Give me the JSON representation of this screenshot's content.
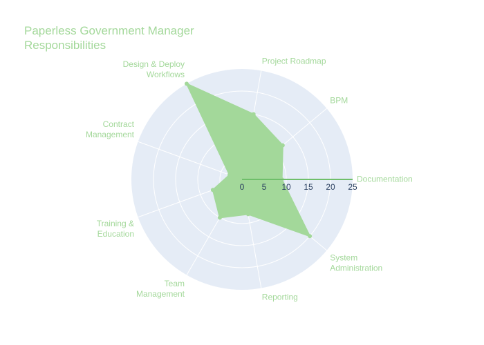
{
  "chart_data": {
    "type": "radar",
    "title": "Paperless Government Manager Responsibilities",
    "title_lines": [
      "Paperless Government Manager",
      "Responsibilities"
    ],
    "categories": [
      "Documentation",
      "BPM",
      "Project Roadmap",
      "Design & Deploy Workflows",
      "Contract Management",
      "Training & Education",
      "Team Management",
      "Reporting",
      "System Administration"
    ],
    "category_lines": [
      [
        "Documentation"
      ],
      [
        "BPM"
      ],
      [
        "Project Roadmap"
      ],
      [
        "Design & Deploy",
        "Workflows"
      ],
      [
        "Contract",
        "Management"
      ],
      [
        "Training &",
        "Education"
      ],
      [
        "Team",
        "Management"
      ],
      [
        "Reporting"
      ],
      [
        "System",
        "Administration"
      ]
    ],
    "values": [
      9,
      12,
      15,
      25,
      3,
      7,
      10,
      8,
      20
    ],
    "radial_range": [
      0,
      25
    ],
    "radial_ticks": [
      "0",
      "5",
      "10",
      "15",
      "20",
      "25"
    ],
    "angle_start_deg": 0,
    "direction": "counterclockwise",
    "fill_color": "#a3d89a",
    "line_color": "#6fbf6a",
    "polar_bg_color": "#e5ecf6",
    "grid_color": "#ffffff",
    "legend": "none"
  }
}
